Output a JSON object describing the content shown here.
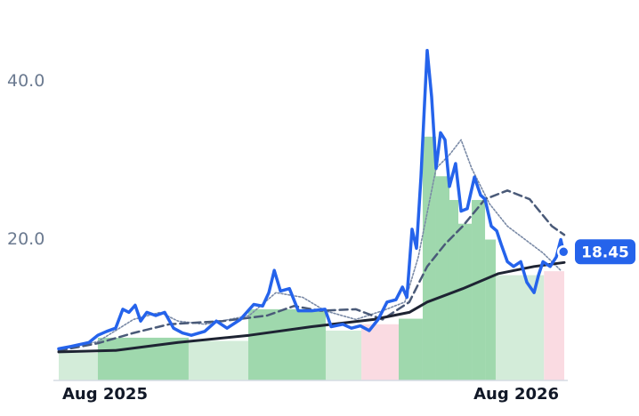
{
  "chart_data": {
    "type": "line",
    "xlim": [
      -1.35,
      13.4
    ],
    "ylim": [
      2.2,
      46
    ],
    "xticks": [
      {
        "value": 0,
        "label": "Aug 2025"
      },
      {
        "value": 12,
        "label": "Aug 2026"
      }
    ],
    "yticks": [
      {
        "value": 20,
        "label": "20.0"
      },
      {
        "value": 40,
        "label": "40.0"
      }
    ],
    "bars": {
      "bins": [
        -1.35,
        -0.21,
        2.44,
        4.18,
        6.44,
        7.48,
        8.57,
        9.27,
        9.66,
        10.05,
        10.31,
        10.7,
        11.09,
        11.4,
        12.81,
        13.4
      ],
      "values": [
        5.7,
        7.6,
        7.2,
        11.2,
        8.5,
        9.3,
        10,
        33,
        28,
        25,
        22,
        25,
        20,
        15.5,
        16
      ],
      "colors": [
        "#d3ecd9",
        "#9fd8ad",
        "#d3ecd9",
        "#9fd8ad",
        "#d3ecd9",
        "#fadbe2",
        "#9fd8ad",
        "#9fd8ad",
        "#9fd8ad",
        "#9fd8ad",
        "#9fd8ad",
        "#9fd8ad",
        "#9fd8ad",
        "#d3ecd9",
        "#fadbe2"
      ]
    },
    "series": [
      {
        "color": "#7a8aa6",
        "style": "dotted",
        "x": [
          -1.35,
          -0.21,
          0.83,
          1.61,
          2.13,
          2.91,
          4.21,
          4.99,
          5.77,
          6.42,
          7.32,
          8.1,
          8.75,
          9.14,
          9.66,
          10.05,
          10.39,
          10.7,
          11.22,
          11.74,
          12.26,
          12.78,
          13.3
        ],
        "values": [
          6.2,
          7.1,
          9.9,
          10.8,
          9.7,
          9.3,
          10.4,
          13.3,
          12.7,
          11.0,
          9.9,
          11.0,
          12.1,
          17.8,
          29.0,
          30.7,
          32.6,
          29.0,
          24.5,
          21.7,
          20.0,
          18.3,
          16.1
        ]
      },
      {
        "color": "#4a5a78",
        "style": "dashed",
        "x": [
          -1.35,
          -0.21,
          0.83,
          1.87,
          3.43,
          4.73,
          5.51,
          6.29,
          7.32,
          8.1,
          8.88,
          9.4,
          9.92,
          10.44,
          11.09,
          11.74,
          12.39,
          13.04,
          13.4
        ],
        "values": [
          5.96,
          6.9,
          8.2,
          9.3,
          9.7,
          10.4,
          11.6,
          11.0,
          11.2,
          9.9,
          12.1,
          16.6,
          19.4,
          21.7,
          25.1,
          26.2,
          25.1,
          21.7,
          20.6
        ]
      },
      {
        "color": "#1e2433",
        "style": "solid",
        "x": [
          -1.35,
          0.31,
          2.13,
          4.21,
          6.03,
          7.84,
          8.88,
          9.4,
          10.44,
          11.48,
          12.52,
          13.4
        ],
        "values": [
          5.8,
          6.0,
          7.0,
          7.9,
          9.0,
          9.9,
          10.8,
          12.1,
          13.8,
          15.7,
          16.6,
          17.1
        ]
      },
      {
        "color": "#2563eb",
        "style": "price",
        "x": [
          -1.35,
          -0.99,
          -0.47,
          -0.21,
          0.05,
          0.31,
          0.52,
          0.7,
          0.88,
          1.04,
          1.22,
          1.48,
          1.74,
          2.0,
          2.26,
          2.52,
          2.91,
          3.25,
          3.56,
          3.95,
          4.34,
          4.6,
          4.78,
          4.94,
          5.12,
          5.38,
          5.64,
          6.03,
          6.42,
          6.6,
          6.94,
          7.19,
          7.45,
          7.71,
          7.97,
          8.23,
          8.49,
          8.68,
          8.81,
          8.96,
          9.09,
          9.22,
          9.32,
          9.4,
          9.53,
          9.66,
          9.79,
          9.92,
          10.05,
          10.23,
          10.39,
          10.57,
          10.78,
          10.96,
          11.09,
          11.27,
          11.43,
          11.56,
          11.74,
          11.92,
          12.13,
          12.31,
          12.52,
          12.65,
          12.78,
          12.99,
          13.17,
          13.3,
          13.38
        ],
        "values": [
          6.2,
          6.5,
          7.0,
          7.9,
          8.4,
          8.8,
          11.2,
          10.8,
          11.7,
          9.7,
          10.8,
          10.4,
          10.8,
          8.8,
          8.2,
          7.9,
          8.4,
          9.7,
          8.8,
          9.9,
          11.8,
          11.6,
          13.3,
          16.1,
          13.5,
          13.8,
          11.0,
          11.0,
          11.2,
          9.0,
          9.3,
          8.8,
          9.1,
          8.5,
          9.9,
          12.1,
          12.4,
          14.0,
          12.7,
          21.3,
          18.9,
          27.9,
          36.9,
          43.9,
          38.0,
          29.0,
          33.5,
          32.6,
          26.7,
          29.6,
          23.6,
          23.9,
          27.9,
          25.6,
          25.1,
          21.7,
          21.1,
          19.4,
          17.2,
          16.6,
          17.2,
          14.6,
          13.3,
          15.5,
          17.2,
          16.6,
          17.8,
          20.0,
          18.45
        ]
      }
    ]
  }
}
